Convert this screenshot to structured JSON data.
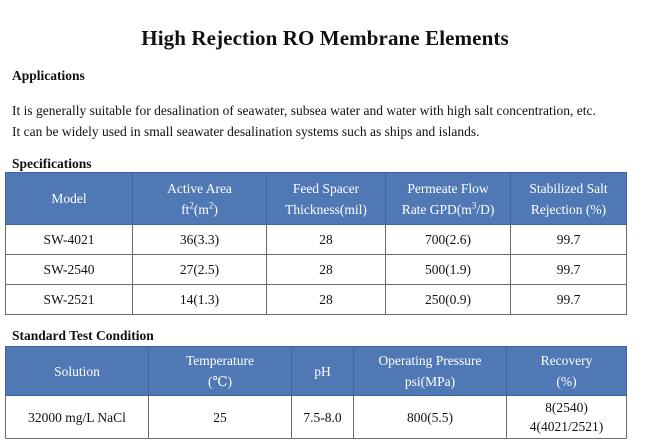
{
  "title": "High Rejection RO Membrane Elements",
  "applications": {
    "heading": "Applications",
    "line1": "It is generally suitable for desalination of seawater, subsea water and water with high salt concentration, etc.",
    "line2": "It can be widely used in small seawater desalination systems such as ships and islands."
  },
  "specifications": {
    "heading": "Specifications",
    "headers": {
      "model": "Model",
      "area_line1": "Active Area",
      "area_line2_a": "ft",
      "area_line2_sup1": "2",
      "area_line2_b": "(m",
      "area_line2_sup2": "2",
      "area_line2_c": ")",
      "spacer_line1": "Feed Spacer",
      "spacer_line2": "Thickness(mil)",
      "flow_line1": "Permeate Flow",
      "flow_line2_a": "Rate GPD(m",
      "flow_line2_sup": "3",
      "flow_line2_b": "/D)",
      "rejection_line1": "Stabilized Salt",
      "rejection_line2": "Rejection (%)"
    },
    "rows": [
      {
        "model": "SW-4021",
        "area": "36(3.3)",
        "spacer": "28",
        "flow": "700(2.6)",
        "rejection": "99.7"
      },
      {
        "model": "SW-2540",
        "area": "27(2.5)",
        "spacer": "28",
        "flow": "500(1.9)",
        "rejection": "99.7"
      },
      {
        "model": "SW-2521",
        "area": "14(1.3)",
        "spacer": "28",
        "flow": "250(0.9)",
        "rejection": "99.7"
      }
    ]
  },
  "standard_test": {
    "heading": "Standard Test Condition",
    "headers": {
      "solution": "Solution",
      "temp_line1": "Temperature",
      "temp_line2": "(℃)",
      "ph": "pH",
      "pressure_line1": "Operating Pressure",
      "pressure_line2": "psi(MPa)",
      "recovery_line1": "Recovery",
      "recovery_line2": "(%)"
    },
    "row": {
      "solution": "32000 mg/L NaCl",
      "temperature": "25",
      "ph": "7.5-8.0",
      "pressure": "800(5.5)",
      "recovery_line1": "8(2540)",
      "recovery_line2": "4(4021/2521)"
    }
  }
}
